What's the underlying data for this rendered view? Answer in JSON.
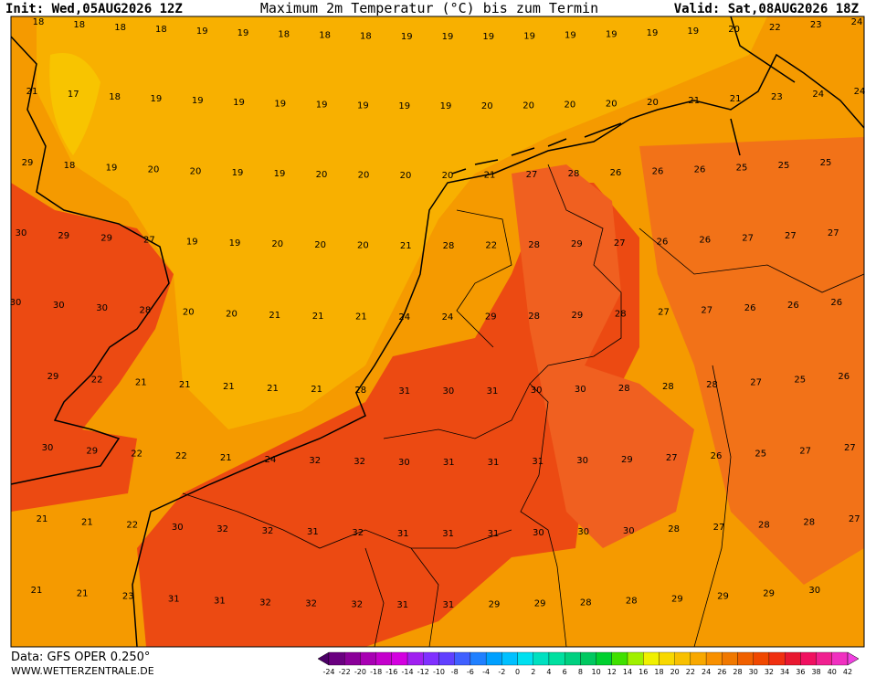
{
  "header": {
    "init": "Init: Wed,05AUG2026 12Z",
    "title": "Maximum 2m Temperatur (°C) bis zum Termin",
    "valid": "Valid: Sat,08AUG2026 18Z"
  },
  "footer": {
    "data": "Data: GFS OPER 0.250°",
    "site": "WWW.WETTERZENTRALE.DE"
  },
  "colorbar": {
    "ticks": [
      -24,
      -22,
      -20,
      -18,
      -16,
      -14,
      -12,
      -10,
      -8,
      -6,
      -4,
      -2,
      0,
      2,
      4,
      6,
      8,
      10,
      12,
      14,
      16,
      18,
      20,
      22,
      24,
      26,
      28,
      30,
      32,
      34,
      36,
      38,
      40,
      42
    ],
    "colors": [
      "#4b0066",
      "#6a0080",
      "#8a0099",
      "#a800b3",
      "#c400cc",
      "#d300e0",
      "#a020f0",
      "#8030ff",
      "#6040ff",
      "#4060ff",
      "#2080ff",
      "#00a0ff",
      "#00c0ff",
      "#00e0f0",
      "#00e0c0",
      "#00e0a0",
      "#00d080",
      "#00c860",
      "#00d030",
      "#40e000",
      "#a0f000",
      "#f0f000",
      "#f8d800",
      "#f8c000",
      "#f8a800",
      "#f89000",
      "#f07800",
      "#f06000",
      "#f04800",
      "#f03010",
      "#e81830",
      "#f01060",
      "#f02090",
      "#f030c0",
      "#f040e0"
    ]
  },
  "map_labels": [
    [
      18,
      18,
      18,
      18,
      19,
      19,
      18,
      18,
      18,
      19,
      19,
      19,
      19,
      19,
      19,
      19,
      19,
      20,
      22,
      23,
      24
    ],
    [
      21,
      17,
      18,
      19,
      19,
      19,
      19,
      19,
      19,
      19,
      19,
      20,
      20,
      20,
      20,
      20,
      21,
      21,
      23,
      24,
      24
    ],
    [
      29,
      18,
      19,
      20,
      20,
      19,
      19,
      20,
      20,
      20,
      20,
      21,
      27,
      28,
      26,
      26,
      26,
      25,
      25,
      25
    ],
    [
      30,
      29,
      29,
      27,
      19,
      19,
      20,
      20,
      20,
      21,
      28,
      22,
      28,
      29,
      27,
      26,
      26,
      27,
      27,
      27
    ],
    [
      30,
      30,
      30,
      28,
      20,
      20,
      21,
      21,
      21,
      24,
      24,
      29,
      28,
      29,
      28,
      27,
      27,
      26,
      26,
      26
    ],
    [
      29,
      22,
      21,
      21,
      21,
      21,
      21,
      28,
      31,
      30,
      31,
      30,
      30,
      28,
      28,
      28,
      27,
      25,
      26
    ],
    [
      30,
      29,
      22,
      22,
      21,
      24,
      32,
      32,
      30,
      31,
      31,
      31,
      30,
      29,
      27,
      26,
      25,
      27,
      27
    ],
    [
      21,
      21,
      22,
      30,
      32,
      32,
      31,
      32,
      31,
      31,
      31,
      30,
      30,
      30,
      28,
      27,
      28,
      28,
      27
    ],
    [
      21,
      21,
      23,
      31,
      31,
      32,
      32,
      32,
      31,
      31,
      29,
      29,
      28,
      28,
      29,
      29,
      29,
      30
    ]
  ]
}
